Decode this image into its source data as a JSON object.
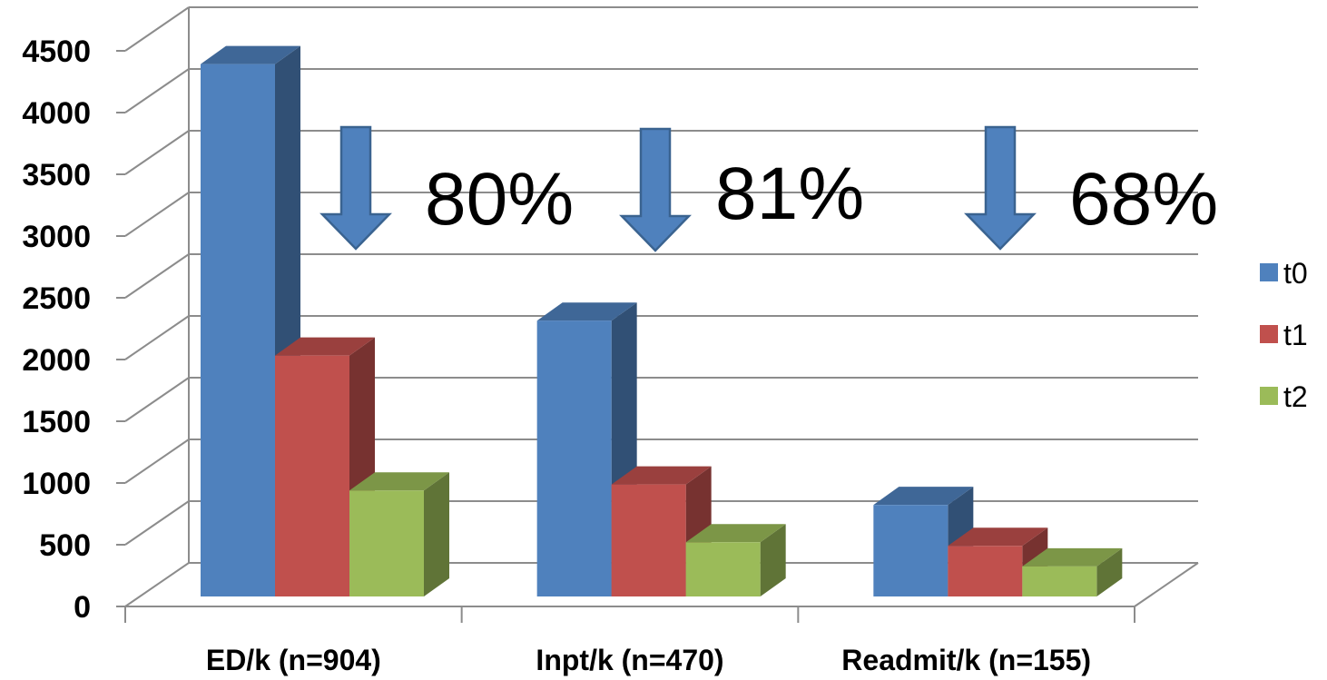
{
  "chart_data": {
    "type": "bar",
    "style": "3d-clustered-column",
    "categories": [
      "ED/k (n=904)",
      "Inpt/k (n=470)",
      "Readmit/k (n=155)"
    ],
    "series": [
      {
        "name": "t0",
        "values": [
          4420,
          2290,
          760
        ],
        "color": "#4F81BD"
      },
      {
        "name": "t1",
        "values": [
          2000,
          930,
          420
        ],
        "color": "#C0504D"
      },
      {
        "name": "t2",
        "values": [
          880,
          450,
          250
        ],
        "color": "#9BBB59"
      }
    ],
    "ylim": [
      0,
      4500
    ],
    "yticks": [
      "0",
      "500",
      "1000",
      "1500",
      "2000",
      "2500",
      "3000",
      "3500",
      "4000",
      "4500"
    ],
    "grid": true,
    "legend": "right",
    "annotations": [
      {
        "text": "80%",
        "icon": "down-arrow-icon",
        "category": 0
      },
      {
        "text": "81%",
        "icon": "down-arrow-icon",
        "category": 1
      },
      {
        "text": "68%",
        "icon": "down-arrow-icon",
        "category": 2
      }
    ],
    "title": "",
    "xlabel": "",
    "ylabel": ""
  }
}
